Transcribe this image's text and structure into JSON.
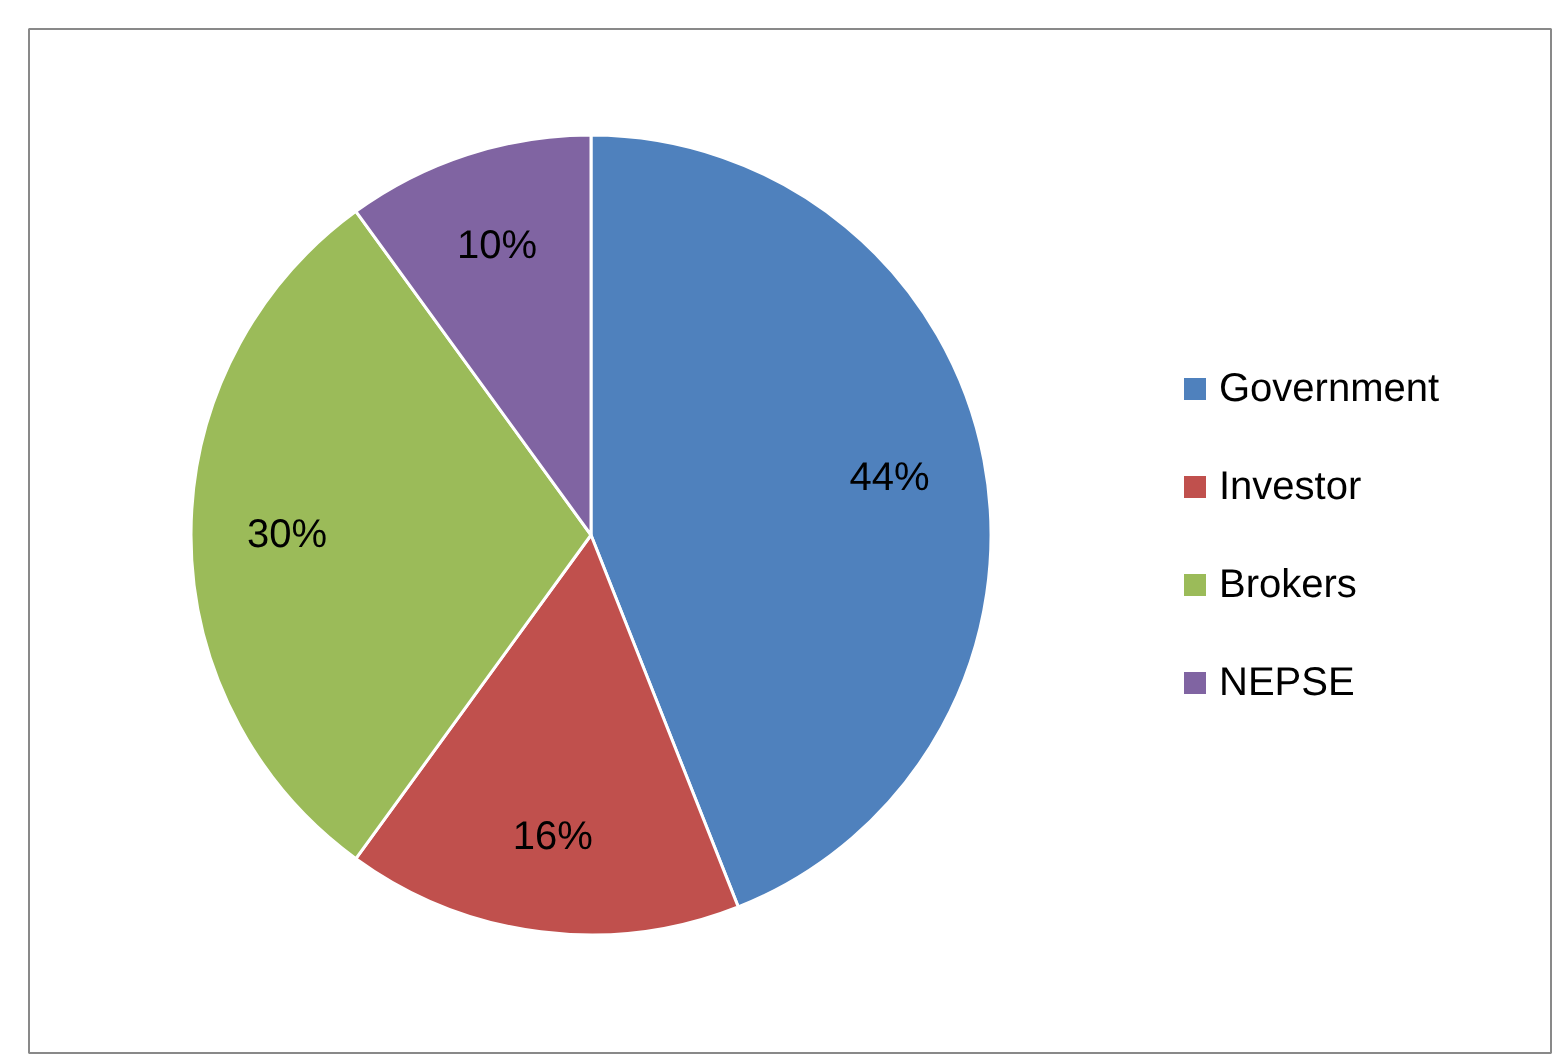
{
  "chart_data": {
    "type": "pie",
    "categories": [
      "Government",
      "Investor",
      "Brokers",
      "NEPSE"
    ],
    "values": [
      44,
      16,
      30,
      10
    ],
    "colors": [
      "#4f81bd",
      "#c0504d",
      "#9bbb59",
      "#8064a2"
    ],
    "value_labels": [
      "44%",
      "16%",
      "30%",
      "10%"
    ],
    "legend": "right"
  }
}
